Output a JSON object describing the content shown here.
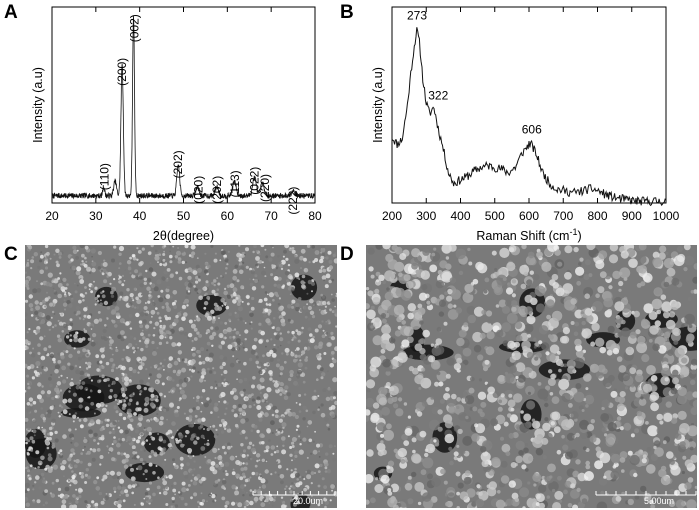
{
  "panels": {
    "a": {
      "letter": "A"
    },
    "b": {
      "letter": "B"
    },
    "c": {
      "letter": "C",
      "scale_label": "20.0um"
    },
    "d": {
      "letter": "D",
      "scale_label": "5.00um"
    }
  },
  "chart_data": [
    {
      "type": "line",
      "panel": "A",
      "xlabel": "2θ(degree)",
      "ylabel": "Intensity (a.u)",
      "xlim": [
        20,
        80
      ],
      "ylim": [
        0,
        1.08
      ],
      "xticks": [
        20,
        30,
        40,
        50,
        60,
        70,
        80
      ],
      "grid": false,
      "baseline": 0.04,
      "peaks": [
        {
          "x": 31.8,
          "h": 0.05,
          "w": 0.3
        },
        {
          "x": 34.4,
          "h": 0.08,
          "w": 0.45
        },
        {
          "x": 36.0,
          "h": 0.73,
          "w": 0.38
        },
        {
          "x": 38.6,
          "h": 0.98,
          "w": 0.32
        },
        {
          "x": 48.8,
          "h": 0.17,
          "w": 0.45
        },
        {
          "x": 53.2,
          "h": 0.05,
          "w": 0.5
        },
        {
          "x": 57.6,
          "h": 0.05,
          "w": 0.55
        },
        {
          "x": 61.6,
          "h": 0.08,
          "w": 0.55
        },
        {
          "x": 66.2,
          "h": 0.1,
          "w": 0.6
        },
        {
          "x": 68.0,
          "h": 0.07,
          "w": 0.55
        },
        {
          "x": 75.0,
          "h": 0.03,
          "w": 0.6
        }
      ],
      "annotations": [
        {
          "text": "(110)",
          "x": 32.0,
          "y": 0.22
        },
        {
          "text": "(200)",
          "x": 36.0,
          "y": 0.8
        },
        {
          "text": "(002)",
          "x": 38.8,
          "y": 1.04
        },
        {
          "text": "(202)",
          "x": 48.8,
          "y": 0.29
        },
        {
          "text": "(020)",
          "x": 53.4,
          "y": 0.15
        },
        {
          "text": "(202)",
          "x": 57.6,
          "y": 0.15
        },
        {
          "text": "(113)",
          "x": 61.8,
          "y": 0.18
        },
        {
          "text": "(022)",
          "x": 66.2,
          "y": 0.2
        },
        {
          "text": "(220)",
          "x": 68.6,
          "y": 0.16
        },
        {
          "text": "(222)",
          "x": 75.0,
          "y": 0.09
        }
      ]
    },
    {
      "type": "line",
      "panel": "B",
      "xlabel": "Raman Shift (cm",
      "xlabel_sup": "-1",
      "xlabel_end": ")",
      "ylabel": "Intensity (a.u)",
      "xlim": [
        200,
        1000
      ],
      "ylim": [
        0,
        1.1
      ],
      "xticks": [
        200,
        300,
        400,
        500,
        600,
        700,
        800,
        900,
        1000
      ],
      "grid": false,
      "points": [
        [
          200,
          0.37
        ],
        [
          215,
          0.33
        ],
        [
          230,
          0.36
        ],
        [
          245,
          0.55
        ],
        [
          258,
          0.78
        ],
        [
          268,
          0.92
        ],
        [
          273,
          0.97
        ],
        [
          280,
          0.9
        ],
        [
          290,
          0.7
        ],
        [
          300,
          0.56
        ],
        [
          310,
          0.5
        ],
        [
          322,
          0.54
        ],
        [
          335,
          0.42
        ],
        [
          350,
          0.3
        ],
        [
          365,
          0.17
        ],
        [
          380,
          0.11
        ],
        [
          400,
          0.13
        ],
        [
          420,
          0.15
        ],
        [
          440,
          0.18
        ],
        [
          460,
          0.2
        ],
        [
          480,
          0.21
        ],
        [
          500,
          0.2
        ],
        [
          520,
          0.19
        ],
        [
          540,
          0.17
        ],
        [
          560,
          0.2
        ],
        [
          580,
          0.28
        ],
        [
          600,
          0.33
        ],
        [
          606,
          0.33
        ],
        [
          620,
          0.28
        ],
        [
          640,
          0.17
        ],
        [
          660,
          0.11
        ],
        [
          680,
          0.08
        ],
        [
          700,
          0.07
        ],
        [
          720,
          0.06
        ],
        [
          740,
          0.06
        ],
        [
          760,
          0.07
        ],
        [
          780,
          0.08
        ],
        [
          800,
          0.07
        ],
        [
          820,
          0.05
        ],
        [
          850,
          0.03
        ],
        [
          880,
          0.02
        ],
        [
          920,
          0.01
        ],
        [
          960,
          0.01
        ],
        [
          1000,
          0.01
        ]
      ],
      "annotations": [
        {
          "text": "273",
          "x": 273,
          "y": 1.03
        },
        {
          "text": "322",
          "x": 335,
          "y": 0.58
        },
        {
          "text": "606",
          "x": 608,
          "y": 0.39
        }
      ]
    }
  ]
}
